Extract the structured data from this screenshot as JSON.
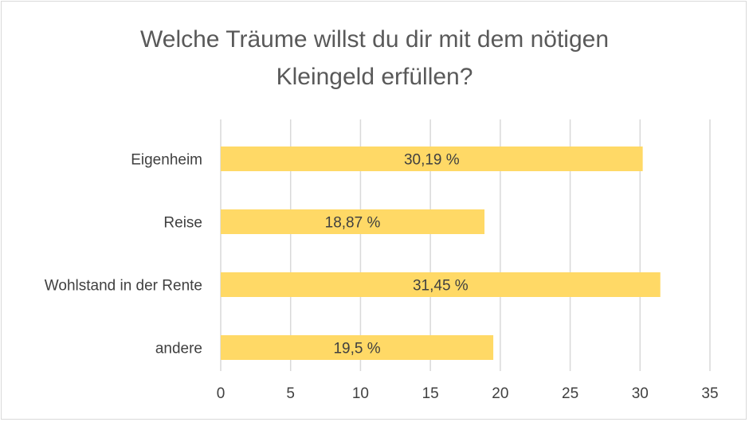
{
  "chart_data": {
    "type": "bar",
    "orientation": "horizontal",
    "title_lines": [
      "Welche Träume willst du dir mit dem nötigen",
      "Kleingeld erfüllen?"
    ],
    "categories": [
      "Eigenheim",
      "Reise",
      "Wohlstand in der Rente",
      "andere"
    ],
    "values": [
      30.19,
      18.87,
      31.45,
      19.5
    ],
    "data_labels": [
      "30,19 %",
      "18,87 %",
      "31,45 %",
      "19,5 %"
    ],
    "xlim": [
      0,
      35
    ],
    "xticks": [
      0,
      5,
      10,
      15,
      20,
      25,
      30,
      35
    ],
    "xtick_labels": [
      "0",
      "5",
      "10",
      "15",
      "20",
      "25",
      "30",
      "35"
    ],
    "grid": true,
    "xlabel": "",
    "ylabel": "",
    "colors": {
      "bar": "#FFD966",
      "grid": "#D9D9D9",
      "text": "#404040",
      "title": "#595959"
    }
  }
}
